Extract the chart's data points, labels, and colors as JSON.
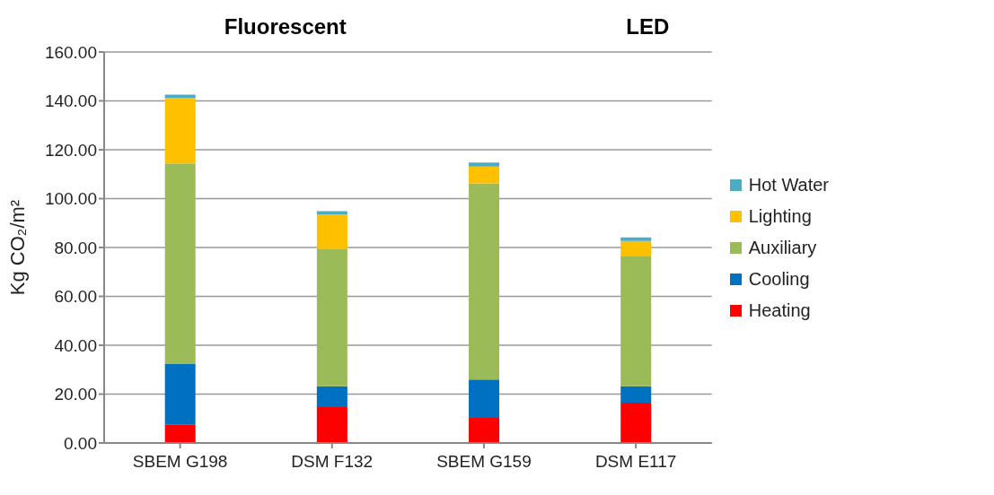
{
  "chart_data": {
    "type": "bar",
    "stacked": true,
    "ylabel": "Kg CO₂/m²",
    "annotations": [
      "Fluorescent",
      "LED"
    ],
    "categories": [
      "SBEM G198",
      "DSM F132",
      "SBEM G159",
      "DSM E117"
    ],
    "series": [
      {
        "name": "Heating",
        "color": "#ff0000",
        "values": [
          7.6,
          14.7,
          10.3,
          16.5
        ]
      },
      {
        "name": "Cooling",
        "color": "#0070c0",
        "values": [
          24.9,
          8.5,
          15.7,
          6.7
        ]
      },
      {
        "name": "Auxiliary",
        "color": "#9bbb59",
        "values": [
          81.9,
          56.1,
          80.2,
          53.4
        ]
      },
      {
        "name": "Lighting",
        "color": "#ffc000",
        "values": [
          26.9,
          14.3,
          6.9,
          6.1
        ]
      },
      {
        "name": "Hot Water",
        "color": "#4bacc6",
        "values": [
          1.3,
          1.3,
          1.7,
          1.4
        ]
      }
    ],
    "ylim": [
      0,
      160
    ],
    "yticks": [
      {
        "value": 0,
        "label": "0.00"
      },
      {
        "value": 20,
        "label": "20.00"
      },
      {
        "value": 40,
        "label": "40.00"
      },
      {
        "value": 60,
        "label": "60.00"
      },
      {
        "value": 80,
        "label": "80.00"
      },
      {
        "value": 100,
        "label": "100.00"
      },
      {
        "value": 120,
        "label": "120.00"
      },
      {
        "value": 140,
        "label": "140.00"
      },
      {
        "value": 160,
        "label": "160.00"
      }
    ],
    "grid": "y",
    "legend": "right"
  }
}
